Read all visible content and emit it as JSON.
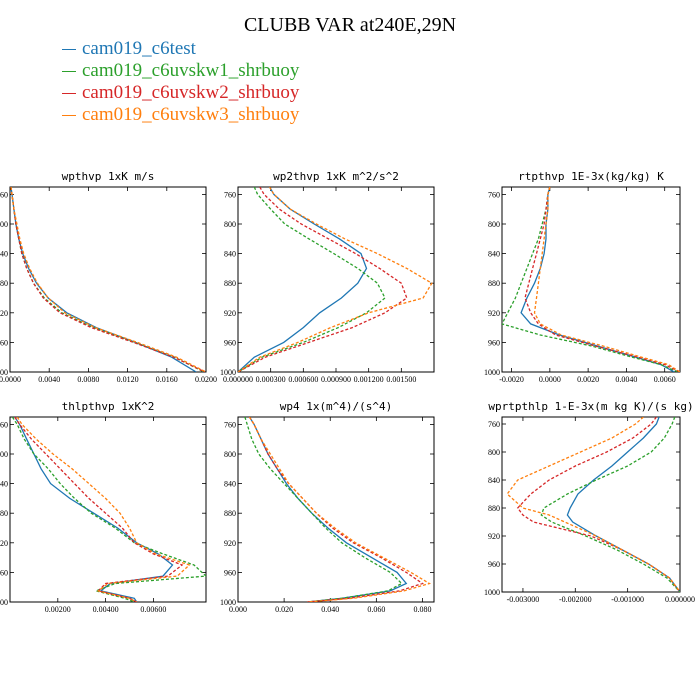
{
  "title": "CLUBB VAR at240E,29N",
  "legend": [
    {
      "name": "cam019_c6test",
      "color": "#1f77b4",
      "dash": "solid"
    },
    {
      "name": "cam019_c6uvskw1_shrbuoy",
      "color": "#2ca02c",
      "dash": "dashed"
    },
    {
      "name": "cam019_c6uvskw2_shrbuoy",
      "color": "#d62728",
      "dash": "dashed"
    },
    {
      "name": "cam019_c6uvskw3_shrbuoy",
      "color": "#ff7f0e",
      "dash": "dashed"
    }
  ],
  "chart_data": [
    {
      "type": "line",
      "title": "wpthvp  1xK m/s",
      "xlim": [
        0,
        0.02
      ],
      "ylim": [
        1000,
        750
      ],
      "xticks": [
        "0.0000",
        "0.0040",
        "0.0080",
        "0.0120",
        "0.0160",
        "0.0200"
      ],
      "xtickvals": [
        0,
        0.004,
        0.008,
        0.012,
        0.016,
        0.02
      ],
      "yticks": [
        760,
        800,
        840,
        880,
        920,
        960,
        1000
      ],
      "y": [
        750,
        760,
        780,
        800,
        820,
        840,
        860,
        880,
        900,
        920,
        940,
        960,
        980,
        1000
      ],
      "series": [
        {
          "values": [
            0.0001,
            0.0002,
            0.0004,
            0.0006,
            0.0009,
            0.0013,
            0.0019,
            0.0027,
            0.0039,
            0.0058,
            0.0088,
            0.0128,
            0.0165,
            0.019
          ]
        },
        {
          "values": [
            0.0001,
            0.0002,
            0.0004,
            0.0006,
            0.0009,
            0.0012,
            0.0017,
            0.0024,
            0.0035,
            0.0053,
            0.0085,
            0.0127,
            0.0168,
            0.0198
          ]
        },
        {
          "values": [
            0.0001,
            0.0002,
            0.0004,
            0.0006,
            0.0009,
            0.0012,
            0.0017,
            0.0024,
            0.0034,
            0.0051,
            0.0083,
            0.0126,
            0.0167,
            0.0199
          ]
        },
        {
          "values": [
            0.0001,
            0.0002,
            0.0004,
            0.0007,
            0.001,
            0.0014,
            0.002,
            0.0028,
            0.0039,
            0.0056,
            0.0087,
            0.013,
            0.017,
            0.02
          ]
        }
      ]
    },
    {
      "type": "line",
      "title": "wp2thvp  1xK m^2/s^2",
      "xlim": [
        0,
        0.0018
      ],
      "ylim": [
        1000,
        750
      ],
      "xticks": [
        "0.000000",
        "0.000300",
        "0.000600",
        "0.000900",
        "0.001200",
        "0.001500"
      ],
      "xtickvals": [
        0,
        0.0003,
        0.0006,
        0.0009,
        0.0012,
        0.0015
      ],
      "yticks": [
        760,
        800,
        840,
        880,
        920,
        960,
        1000
      ],
      "y": [
        750,
        760,
        780,
        800,
        820,
        840,
        860,
        880,
        900,
        920,
        940,
        960,
        980,
        1000
      ],
      "series": [
        {
          "values": [
            0.00029,
            0.00033,
            0.00048,
            0.0007,
            0.00093,
            0.00113,
            0.00118,
            0.0011,
            0.00095,
            0.00075,
            0.0006,
            0.00042,
            0.00015,
            0.0
          ]
        },
        {
          "values": [
            0.00015,
            0.00018,
            0.0003,
            0.00043,
            0.00065,
            0.00088,
            0.0011,
            0.00128,
            0.00135,
            0.00118,
            0.00092,
            0.0006,
            0.00022,
            0.0
          ]
        },
        {
          "values": [
            0.0002,
            0.00024,
            0.00038,
            0.00058,
            0.00083,
            0.00108,
            0.0013,
            0.0015,
            0.00155,
            0.00135,
            0.00105,
            0.00065,
            0.00025,
            0.0
          ]
        },
        {
          "values": [
            0.00029,
            0.00033,
            0.00048,
            0.00072,
            0.00098,
            0.00128,
            0.00155,
            0.00178,
            0.0017,
            0.0012,
            0.00085,
            0.00055,
            0.0002,
            0.0
          ]
        }
      ]
    },
    {
      "type": "line",
      "title": "rtpthvp  1E-3x(kg/kg) K",
      "xlim": [
        -0.0025,
        0.0068
      ],
      "ylim": [
        1000,
        750
      ],
      "xticks": [
        "-0.0020",
        "0.0000",
        "0.0020",
        "0.0040",
        "0.0060"
      ],
      "xtickvals": [
        -0.002,
        0,
        0.002,
        0.004,
        0.006
      ],
      "yticks": [
        760,
        800,
        840,
        880,
        920,
        960,
        1000
      ],
      "y": [
        750,
        760,
        780,
        800,
        820,
        840,
        860,
        880,
        900,
        920,
        935,
        950,
        965,
        980,
        990,
        1000
      ],
      "series": [
        {
          "values": [
            0.0,
            -0.0001,
            -0.0001,
            -0.0002,
            -0.0002,
            -0.0003,
            -0.0005,
            -0.0008,
            -0.0012,
            -0.0015,
            -0.001,
            0.0005,
            0.0025,
            0.0045,
            0.0058,
            0.0065
          ]
        },
        {
          "values": [
            0.0,
            -0.0001,
            -0.0002,
            -0.0004,
            -0.0006,
            -0.0009,
            -0.0012,
            -0.0015,
            -0.0018,
            -0.0022,
            -0.0025,
            -0.0005,
            0.0022,
            0.0043,
            0.0058,
            0.0067
          ]
        },
        {
          "values": [
            0.0,
            -0.0001,
            -0.0002,
            -0.0003,
            -0.0005,
            -0.0007,
            -0.0009,
            -0.0011,
            -0.0013,
            -0.001,
            -0.0006,
            0.0003,
            0.0024,
            0.0046,
            0.006,
            0.0068
          ]
        },
        {
          "values": [
            0.0,
            -0.0001,
            -0.0001,
            -0.0002,
            -0.0003,
            -0.0004,
            -0.0005,
            -0.0006,
            -0.0007,
            -0.0008,
            -0.0005,
            0.0006,
            0.0028,
            0.0048,
            0.0062,
            0.0068
          ]
        }
      ]
    },
    {
      "type": "line",
      "title": "thlpthvp  1xK^2",
      "xlim": [
        0,
        0.0082
      ],
      "ylim": [
        1000,
        750
      ],
      "xticks": [
        "0.00200",
        "0.00400",
        "0.00600"
      ],
      "xtickvals": [
        0.002,
        0.004,
        0.006
      ],
      "yticks": [
        760,
        800,
        840,
        880,
        920,
        960,
        1000
      ],
      "y": [
        750,
        760,
        780,
        800,
        820,
        840,
        860,
        880,
        900,
        920,
        935,
        950,
        965,
        975,
        985,
        995,
        1000
      ],
      "series": [
        {
          "values": [
            0.0002,
            0.0004,
            0.0007,
            0.001,
            0.0013,
            0.0017,
            0.0025,
            0.0035,
            0.0045,
            0.0053,
            0.0062,
            0.0068,
            0.0064,
            0.0042,
            0.0038,
            0.0052,
            0.0053
          ]
        },
        {
          "values": [
            0.0001,
            0.0003,
            0.0006,
            0.001,
            0.0016,
            0.0021,
            0.0027,
            0.0034,
            0.0044,
            0.0052,
            0.0064,
            0.0077,
            0.0082,
            0.0044,
            0.0036,
            0.0048,
            0.0052
          ]
        },
        {
          "values": [
            0.0002,
            0.0004,
            0.0009,
            0.0015,
            0.0021,
            0.0027,
            0.0033,
            0.004,
            0.0047,
            0.0052,
            0.006,
            0.0072,
            0.0066,
            0.004,
            0.0037,
            0.005,
            0.0053
          ]
        },
        {
          "values": [
            0.0003,
            0.0005,
            0.0011,
            0.0018,
            0.0026,
            0.0033,
            0.004,
            0.0046,
            0.005,
            0.0053,
            0.0061,
            0.0075,
            0.007,
            0.0041,
            0.0037,
            0.005,
            0.0053
          ]
        }
      ]
    },
    {
      "type": "line",
      "title": "wp4  1x(m^4)/(s^4)",
      "xlim": [
        0,
        0.085
      ],
      "ylim": [
        1000,
        750
      ],
      "xticks": [
        "0.000",
        "0.020",
        "0.040",
        "0.060",
        "0.080"
      ],
      "xtickvals": [
        0,
        0.02,
        0.04,
        0.06,
        0.08
      ],
      "yticks": [
        760,
        800,
        840,
        880,
        920,
        960,
        1000
      ],
      "y": [
        750,
        760,
        780,
        800,
        820,
        840,
        860,
        880,
        900,
        920,
        940,
        960,
        975,
        985,
        995,
        1000
      ],
      "series": [
        {
          "values": [
            0.005,
            0.007,
            0.01,
            0.013,
            0.017,
            0.021,
            0.026,
            0.032,
            0.039,
            0.047,
            0.058,
            0.069,
            0.073,
            0.066,
            0.045,
            0.03
          ]
        },
        {
          "values": [
            0.003,
            0.004,
            0.006,
            0.009,
            0.014,
            0.02,
            0.026,
            0.032,
            0.038,
            0.045,
            0.055,
            0.066,
            0.071,
            0.065,
            0.045,
            0.03
          ]
        },
        {
          "values": [
            0.005,
            0.007,
            0.01,
            0.013,
            0.017,
            0.022,
            0.028,
            0.034,
            0.041,
            0.05,
            0.062,
            0.073,
            0.08,
            0.07,
            0.048,
            0.03
          ]
        },
        {
          "values": [
            0.005,
            0.007,
            0.01,
            0.014,
            0.018,
            0.022,
            0.028,
            0.034,
            0.042,
            0.051,
            0.063,
            0.075,
            0.083,
            0.072,
            0.05,
            0.03
          ]
        }
      ]
    },
    {
      "type": "line",
      "title": "wprtpthlp  1-E-3x(m kg K)/(s kg)",
      "xlim": [
        -0.0034,
        0.0
      ],
      "ylim": [
        1000,
        750
      ],
      "xticks": [
        "-0.003000",
        "-0.002000",
        "-0.001000",
        "0.000000"
      ],
      "xtickvals": [
        -0.003,
        -0.002,
        -0.001,
        0.0
      ],
      "yticks": [
        760,
        800,
        840,
        880,
        920,
        960,
        1000
      ],
      "y": [
        750,
        760,
        780,
        800,
        820,
        840,
        860,
        880,
        890,
        900,
        920,
        940,
        960,
        980,
        1000
      ],
      "series": [
        {
          "values": [
            -0.0004,
            -0.00045,
            -0.0007,
            -0.001,
            -0.0013,
            -0.00165,
            -0.00195,
            -0.0021,
            -0.00215,
            -0.00205,
            -0.0016,
            -0.0011,
            -0.0006,
            -0.0002,
            0.0
          ]
        },
        {
          "values": [
            -0.0001,
            -0.00015,
            -0.0003,
            -0.00055,
            -0.001,
            -0.0016,
            -0.00215,
            -0.0026,
            -0.00265,
            -0.00245,
            -0.0018,
            -0.0012,
            -0.0007,
            -0.00025,
            0.0
          ]
        },
        {
          "values": [
            -0.00045,
            -0.00055,
            -0.0009,
            -0.0014,
            -0.002,
            -0.0025,
            -0.00285,
            -0.0031,
            -0.003,
            -0.0028,
            -0.0017,
            -0.0011,
            -0.0006,
            -0.0002,
            0.0
          ]
        },
        {
          "values": [
            -0.0007,
            -0.00085,
            -0.0013,
            -0.0019,
            -0.0025,
            -0.0031,
            -0.0033,
            -0.003,
            -0.0025,
            -0.0022,
            -0.0016,
            -0.0011,
            -0.0006,
            -0.0002,
            0.0
          ]
        }
      ]
    }
  ]
}
